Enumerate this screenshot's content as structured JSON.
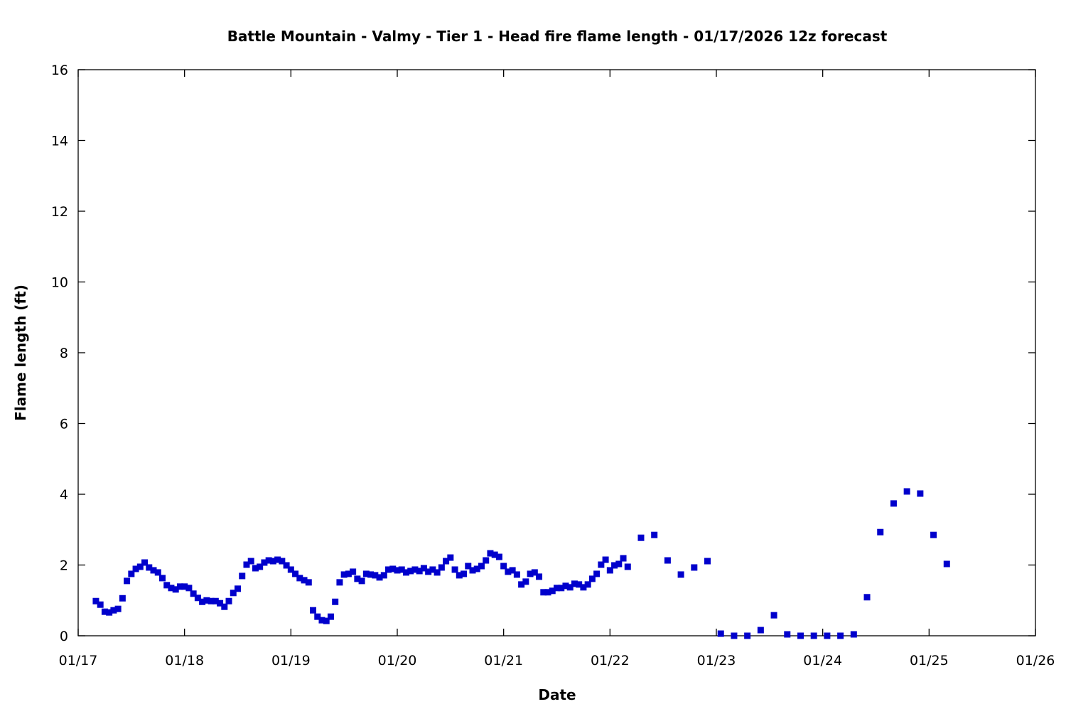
{
  "chart_data": {
    "type": "scatter",
    "title": "Battle Mountain - Valmy - Tier 1 - Head fire flame length - 01/17/2026 12z forecast",
    "xlabel": "Date",
    "ylabel": "Flame length (ft)",
    "x_units": "hours since 01/17 00:00",
    "xlim": [
      0,
      216
    ],
    "ylim": [
      0,
      16
    ],
    "xticks": [
      {
        "v": 0,
        "label": "01/17"
      },
      {
        "v": 24,
        "label": "01/18"
      },
      {
        "v": 48,
        "label": "01/19"
      },
      {
        "v": 72,
        "label": "01/20"
      },
      {
        "v": 96,
        "label": "01/21"
      },
      {
        "v": 120,
        "label": "01/22"
      },
      {
        "v": 144,
        "label": "01/23"
      },
      {
        "v": 168,
        "label": "01/24"
      },
      {
        "v": 192,
        "label": "01/25"
      },
      {
        "v": 216,
        "label": "01/26"
      }
    ],
    "yticks": [
      {
        "v": 0,
        "label": "0"
      },
      {
        "v": 2,
        "label": "2"
      },
      {
        "v": 4,
        "label": "4"
      },
      {
        "v": 6,
        "label": "6"
      },
      {
        "v": 8,
        "label": "8"
      },
      {
        "v": 10,
        "label": "10"
      },
      {
        "v": 12,
        "label": "12"
      },
      {
        "v": 14,
        "label": "14"
      },
      {
        "v": 16,
        "label": "16"
      }
    ],
    "grid": false,
    "series": [
      {
        "name": "Head fire flame length",
        "color": "#0000cc",
        "points": [
          [
            4,
            0.98
          ],
          [
            5,
            0.88
          ],
          [
            6,
            0.68
          ],
          [
            7,
            0.66
          ],
          [
            8,
            0.72
          ],
          [
            9,
            0.76
          ],
          [
            10,
            1.06
          ],
          [
            11,
            1.55
          ],
          [
            12,
            1.75
          ],
          [
            13,
            1.89
          ],
          [
            14,
            1.95
          ],
          [
            15,
            2.07
          ],
          [
            16,
            1.93
          ],
          [
            17,
            1.85
          ],
          [
            18,
            1.79
          ],
          [
            19,
            1.63
          ],
          [
            20,
            1.43
          ],
          [
            21,
            1.35
          ],
          [
            22,
            1.31
          ],
          [
            23,
            1.39
          ],
          [
            24,
            1.39
          ],
          [
            25,
            1.35
          ],
          [
            26,
            1.19
          ],
          [
            27,
            1.07
          ],
          [
            28,
            0.96
          ],
          [
            29,
            1.0
          ],
          [
            30,
            0.98
          ],
          [
            31,
            0.98
          ],
          [
            32,
            0.92
          ],
          [
            33,
            0.82
          ],
          [
            34,
            0.98
          ],
          [
            35,
            1.21
          ],
          [
            36,
            1.33
          ],
          [
            37,
            1.69
          ],
          [
            38,
            2.01
          ],
          [
            39,
            2.11
          ],
          [
            40,
            1.91
          ],
          [
            41,
            1.95
          ],
          [
            42,
            2.07
          ],
          [
            43,
            2.13
          ],
          [
            44,
            2.11
          ],
          [
            45,
            2.15
          ],
          [
            46,
            2.11
          ],
          [
            47,
            1.99
          ],
          [
            48,
            1.87
          ],
          [
            49,
            1.75
          ],
          [
            50,
            1.63
          ],
          [
            51,
            1.57
          ],
          [
            52,
            1.51
          ],
          [
            53,
            0.72
          ],
          [
            54,
            0.54
          ],
          [
            55,
            0.44
          ],
          [
            56,
            0.42
          ],
          [
            57,
            0.54
          ],
          [
            58,
            0.96
          ],
          [
            59,
            1.51
          ],
          [
            60,
            1.73
          ],
          [
            61,
            1.75
          ],
          [
            62,
            1.81
          ],
          [
            63,
            1.61
          ],
          [
            64,
            1.55
          ],
          [
            65,
            1.75
          ],
          [
            66,
            1.73
          ],
          [
            67,
            1.71
          ],
          [
            68,
            1.65
          ],
          [
            69,
            1.71
          ],
          [
            70,
            1.87
          ],
          [
            71,
            1.89
          ],
          [
            72,
            1.85
          ],
          [
            73,
            1.87
          ],
          [
            74,
            1.79
          ],
          [
            75,
            1.83
          ],
          [
            76,
            1.87
          ],
          [
            77,
            1.83
          ],
          [
            78,
            1.91
          ],
          [
            79,
            1.81
          ],
          [
            80,
            1.87
          ],
          [
            81,
            1.79
          ],
          [
            82,
            1.93
          ],
          [
            83,
            2.11
          ],
          [
            84,
            2.21
          ],
          [
            85,
            1.87
          ],
          [
            86,
            1.71
          ],
          [
            87,
            1.75
          ],
          [
            88,
            1.97
          ],
          [
            89,
            1.85
          ],
          [
            90,
            1.89
          ],
          [
            91,
            1.97
          ],
          [
            92,
            2.13
          ],
          [
            93,
            2.33
          ],
          [
            94,
            2.29
          ],
          [
            95,
            2.23
          ],
          [
            96,
            1.97
          ],
          [
            97,
            1.81
          ],
          [
            98,
            1.85
          ],
          [
            99,
            1.73
          ],
          [
            100,
            1.45
          ],
          [
            101,
            1.53
          ],
          [
            102,
            1.75
          ],
          [
            103,
            1.79
          ],
          [
            104,
            1.67
          ],
          [
            105,
            1.23
          ],
          [
            106,
            1.23
          ],
          [
            107,
            1.27
          ],
          [
            108,
            1.35
          ],
          [
            109,
            1.35
          ],
          [
            110,
            1.41
          ],
          [
            111,
            1.37
          ],
          [
            112,
            1.47
          ],
          [
            113,
            1.45
          ],
          [
            114,
            1.37
          ],
          [
            115,
            1.45
          ],
          [
            116,
            1.61
          ],
          [
            117,
            1.75
          ],
          [
            118,
            2.01
          ],
          [
            119,
            2.15
          ],
          [
            120,
            1.85
          ],
          [
            121,
            1.99
          ],
          [
            122,
            2.03
          ],
          [
            123,
            2.19
          ],
          [
            124,
            1.95
          ],
          [
            127,
            2.77
          ],
          [
            130,
            2.85
          ],
          [
            133,
            2.13
          ],
          [
            136,
            1.73
          ],
          [
            139,
            1.93
          ],
          [
            142,
            2.11
          ],
          [
            145,
            0.06
          ],
          [
            148,
            0.0
          ],
          [
            151,
            0.0
          ],
          [
            154,
            0.16
          ],
          [
            157,
            0.58
          ],
          [
            160,
            0.04
          ],
          [
            163,
            0.0
          ],
          [
            166,
            0.0
          ],
          [
            169,
            0.0
          ],
          [
            172,
            0.0
          ],
          [
            175,
            0.04
          ],
          [
            178,
            1.09
          ],
          [
            181,
            2.93
          ],
          [
            184,
            3.74
          ],
          [
            187,
            4.08
          ],
          [
            190,
            4.02
          ],
          [
            193,
            2.85
          ],
          [
            196,
            2.03
          ]
        ]
      }
    ]
  }
}
